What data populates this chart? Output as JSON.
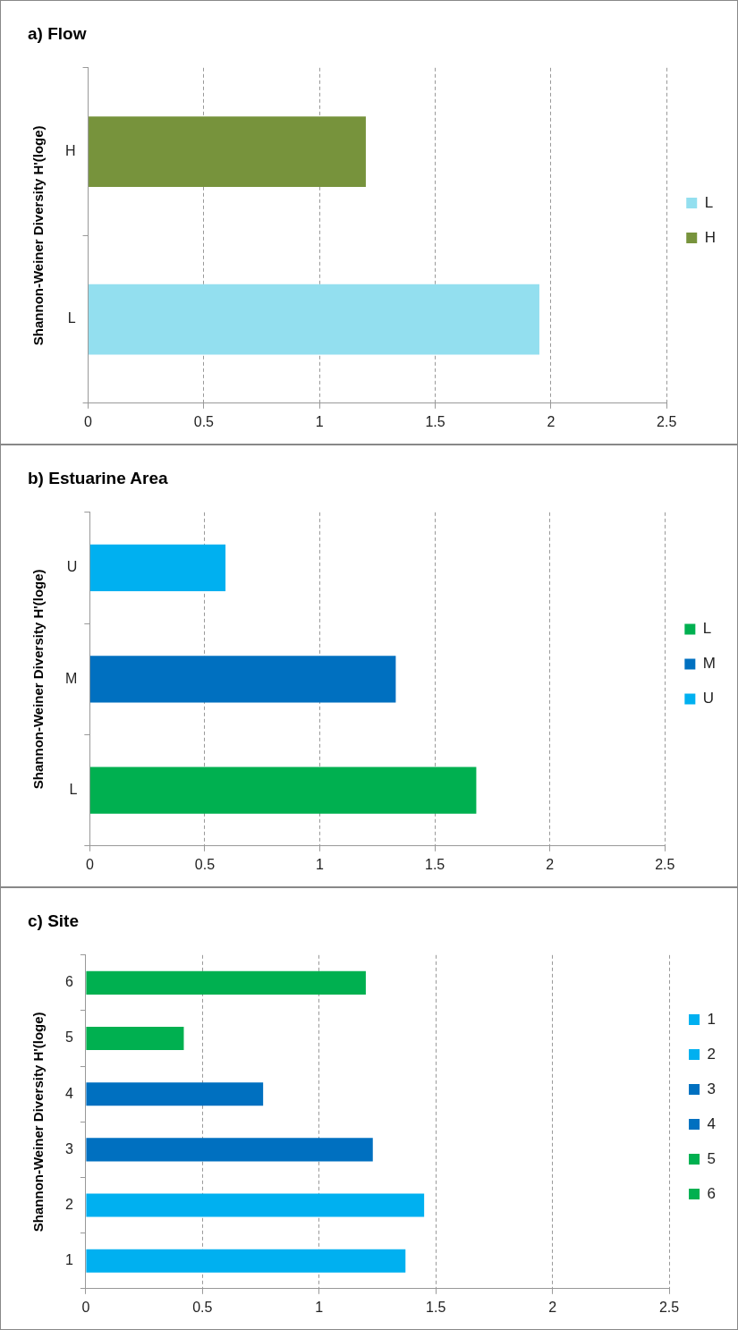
{
  "chart_data": [
    {
      "type": "bar",
      "orientation": "horizontal",
      "title": "a) Flow",
      "ylabel": "Shannon-Weiner Diversity H'(loge)",
      "categories": [
        "H",
        "L"
      ],
      "series": [
        {
          "name": "L",
          "color": "#93dfef",
          "values": [
            null,
            1.95
          ]
        },
        {
          "name": "H",
          "color": "#77933c",
          "values": [
            1.2,
            null
          ]
        }
      ],
      "xlim": [
        0,
        2.5
      ],
      "xticks": [
        0,
        0.5,
        1,
        1.5,
        2,
        2.5
      ],
      "grid": "x",
      "legend": "right"
    },
    {
      "type": "bar",
      "orientation": "horizontal",
      "title": "b) Estuarine Area",
      "ylabel": "Shannon-Weiner Diversity H'(loge)",
      "categories": [
        "U",
        "M",
        "L"
      ],
      "series": [
        {
          "name": "L",
          "color": "#00b050",
          "values": [
            null,
            null,
            1.68
          ]
        },
        {
          "name": "M",
          "color": "#0070c0",
          "values": [
            null,
            1.33,
            null
          ]
        },
        {
          "name": "U",
          "color": "#00b0f0",
          "values": [
            0.59,
            null,
            null
          ]
        }
      ],
      "xlim": [
        0,
        2.5
      ],
      "xticks": [
        0,
        0.5,
        1,
        1.5,
        2,
        2.5
      ],
      "grid": "x",
      "legend": "right"
    },
    {
      "type": "bar",
      "orientation": "horizontal",
      "title": "c) Site",
      "ylabel": "Shannon-Weiner Diversity H'(loge)",
      "categories": [
        "6",
        "5",
        "4",
        "3",
        "2",
        "1"
      ],
      "series": [
        {
          "name": "1",
          "color": "#00b0f0",
          "values": [
            null,
            null,
            null,
            null,
            null,
            1.37
          ]
        },
        {
          "name": "2",
          "color": "#00b0f0",
          "values": [
            null,
            null,
            null,
            null,
            1.45,
            null
          ]
        },
        {
          "name": "3",
          "color": "#0070c0",
          "values": [
            null,
            null,
            null,
            1.23,
            null,
            null
          ]
        },
        {
          "name": "4",
          "color": "#0070c0",
          "values": [
            null,
            null,
            0.76,
            null,
            null,
            null
          ]
        },
        {
          "name": "5",
          "color": "#00b050",
          "values": [
            null,
            0.42,
            null,
            null,
            null,
            null
          ]
        },
        {
          "name": "6",
          "color": "#00b050",
          "values": [
            1.2,
            null,
            null,
            null,
            null,
            null
          ]
        }
      ],
      "xlim": [
        0,
        2.5
      ],
      "xticks": [
        0,
        0.5,
        1,
        1.5,
        2,
        2.5
      ],
      "grid": "x",
      "legend": "right"
    }
  ]
}
